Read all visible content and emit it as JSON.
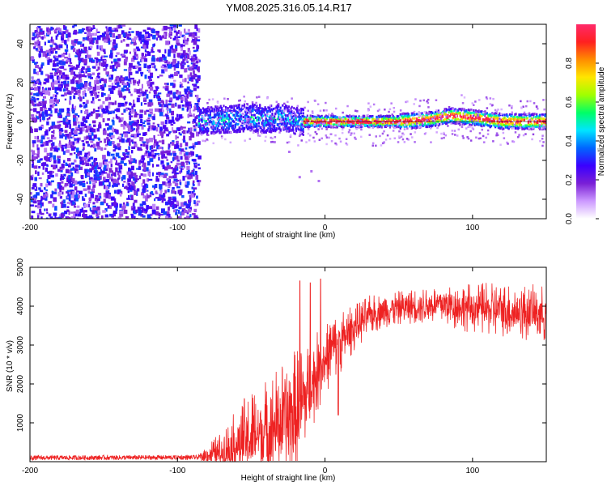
{
  "figure_title": "YM08.2025.316.05.14.R17",
  "chart_data": [
    {
      "type": "heatmap",
      "name": "spectrogram",
      "xlabel": "Height of straight line (km)",
      "ylabel": "Frequency (Hz)",
      "xlim": [
        -200,
        150
      ],
      "ylim": [
        -50,
        50
      ],
      "xticks": [
        -200,
        -100,
        0,
        100
      ],
      "yticks": [
        -40,
        -20,
        0,
        20,
        40
      ],
      "noise_floor_region_x": [
        -200,
        -86
      ],
      "signal_start_x": -86,
      "signal_center_hz": [
        [
          -86,
          0
        ],
        [
          -70,
          1
        ],
        [
          -50,
          2
        ],
        [
          -40,
          1
        ],
        [
          -30,
          2
        ],
        [
          -20,
          0
        ],
        [
          -10,
          0
        ],
        [
          0,
          0
        ],
        [
          20,
          0
        ],
        [
          50,
          0
        ],
        [
          70,
          1
        ],
        [
          85,
          3
        ],
        [
          100,
          2
        ],
        [
          120,
          0
        ],
        [
          150,
          0
        ]
      ],
      "sparse_low_freq_tail": [
        [
          -35,
          -10
        ],
        [
          -25,
          -15
        ],
        [
          -18,
          -28
        ],
        [
          -10,
          -25
        ],
        [
          -5,
          -30
        ]
      ],
      "colorbar": {
        "label": "Normalized spectral amplitude",
        "ticks": [
          0.0,
          0.2,
          0.4,
          0.6,
          0.8
        ],
        "tick_labels": [
          "0.0",
          "0.2",
          "0.4",
          "0.6",
          "0.8"
        ],
        "range": [
          0,
          1
        ],
        "colormap": [
          "#ffffff",
          "#cc99ff",
          "#7a1fd6",
          "#3a00ff",
          "#0066ff",
          "#00e5ff",
          "#00ff66",
          "#a0ff00",
          "#ffe600",
          "#ff8c00",
          "#ff2020",
          "#ff2a6a"
        ]
      }
    },
    {
      "type": "line",
      "name": "snr",
      "xlabel": "Height of straight line (km)",
      "ylabel": "SNR (10 * v/v)",
      "xlim": [
        -200,
        150
      ],
      "ylim": [
        0,
        5000
      ],
      "xticks": [
        -200,
        -100,
        0,
        100
      ],
      "yticks": [
        1000,
        2000,
        3000,
        4000,
        5000
      ],
      "color": "#ee2222",
      "trend": [
        [
          -200,
          100
        ],
        [
          -86,
          110
        ],
        [
          -82,
          150
        ],
        [
          -70,
          250
        ],
        [
          -60,
          450
        ],
        [
          -50,
          620
        ],
        [
          -40,
          800
        ],
        [
          -30,
          1000
        ],
        [
          -20,
          1200
        ],
        [
          -15,
          1500
        ],
        [
          -10,
          1900
        ],
        [
          -5,
          2300
        ],
        [
          0,
          2600
        ],
        [
          5,
          2900
        ],
        [
          10,
          3050
        ],
        [
          15,
          3250
        ],
        [
          20,
          3450
        ],
        [
          30,
          3750
        ],
        [
          40,
          3900
        ],
        [
          50,
          3950
        ],
        [
          60,
          4000
        ],
        [
          80,
          4050
        ],
        [
          100,
          3950
        ],
        [
          120,
          3900
        ],
        [
          150,
          3800
        ]
      ],
      "noise_amplitude": [
        [
          -200,
          60
        ],
        [
          -86,
          60
        ],
        [
          -82,
          250
        ],
        [
          -70,
          550
        ],
        [
          -60,
          900
        ],
        [
          -50,
          1300
        ],
        [
          -40,
          1400
        ],
        [
          -30,
          1500
        ],
        [
          -20,
          1700
        ],
        [
          -10,
          1200
        ],
        [
          0,
          900
        ],
        [
          10,
          800
        ],
        [
          20,
          600
        ],
        [
          40,
          450
        ],
        [
          60,
          450
        ],
        [
          80,
          550
        ],
        [
          100,
          650
        ],
        [
          120,
          700
        ],
        [
          150,
          750
        ]
      ],
      "spikes": [
        [
          -17,
          4650
        ],
        [
          -10,
          4600
        ],
        [
          -3,
          4700
        ],
        [
          9,
          1200
        ]
      ]
    }
  ]
}
